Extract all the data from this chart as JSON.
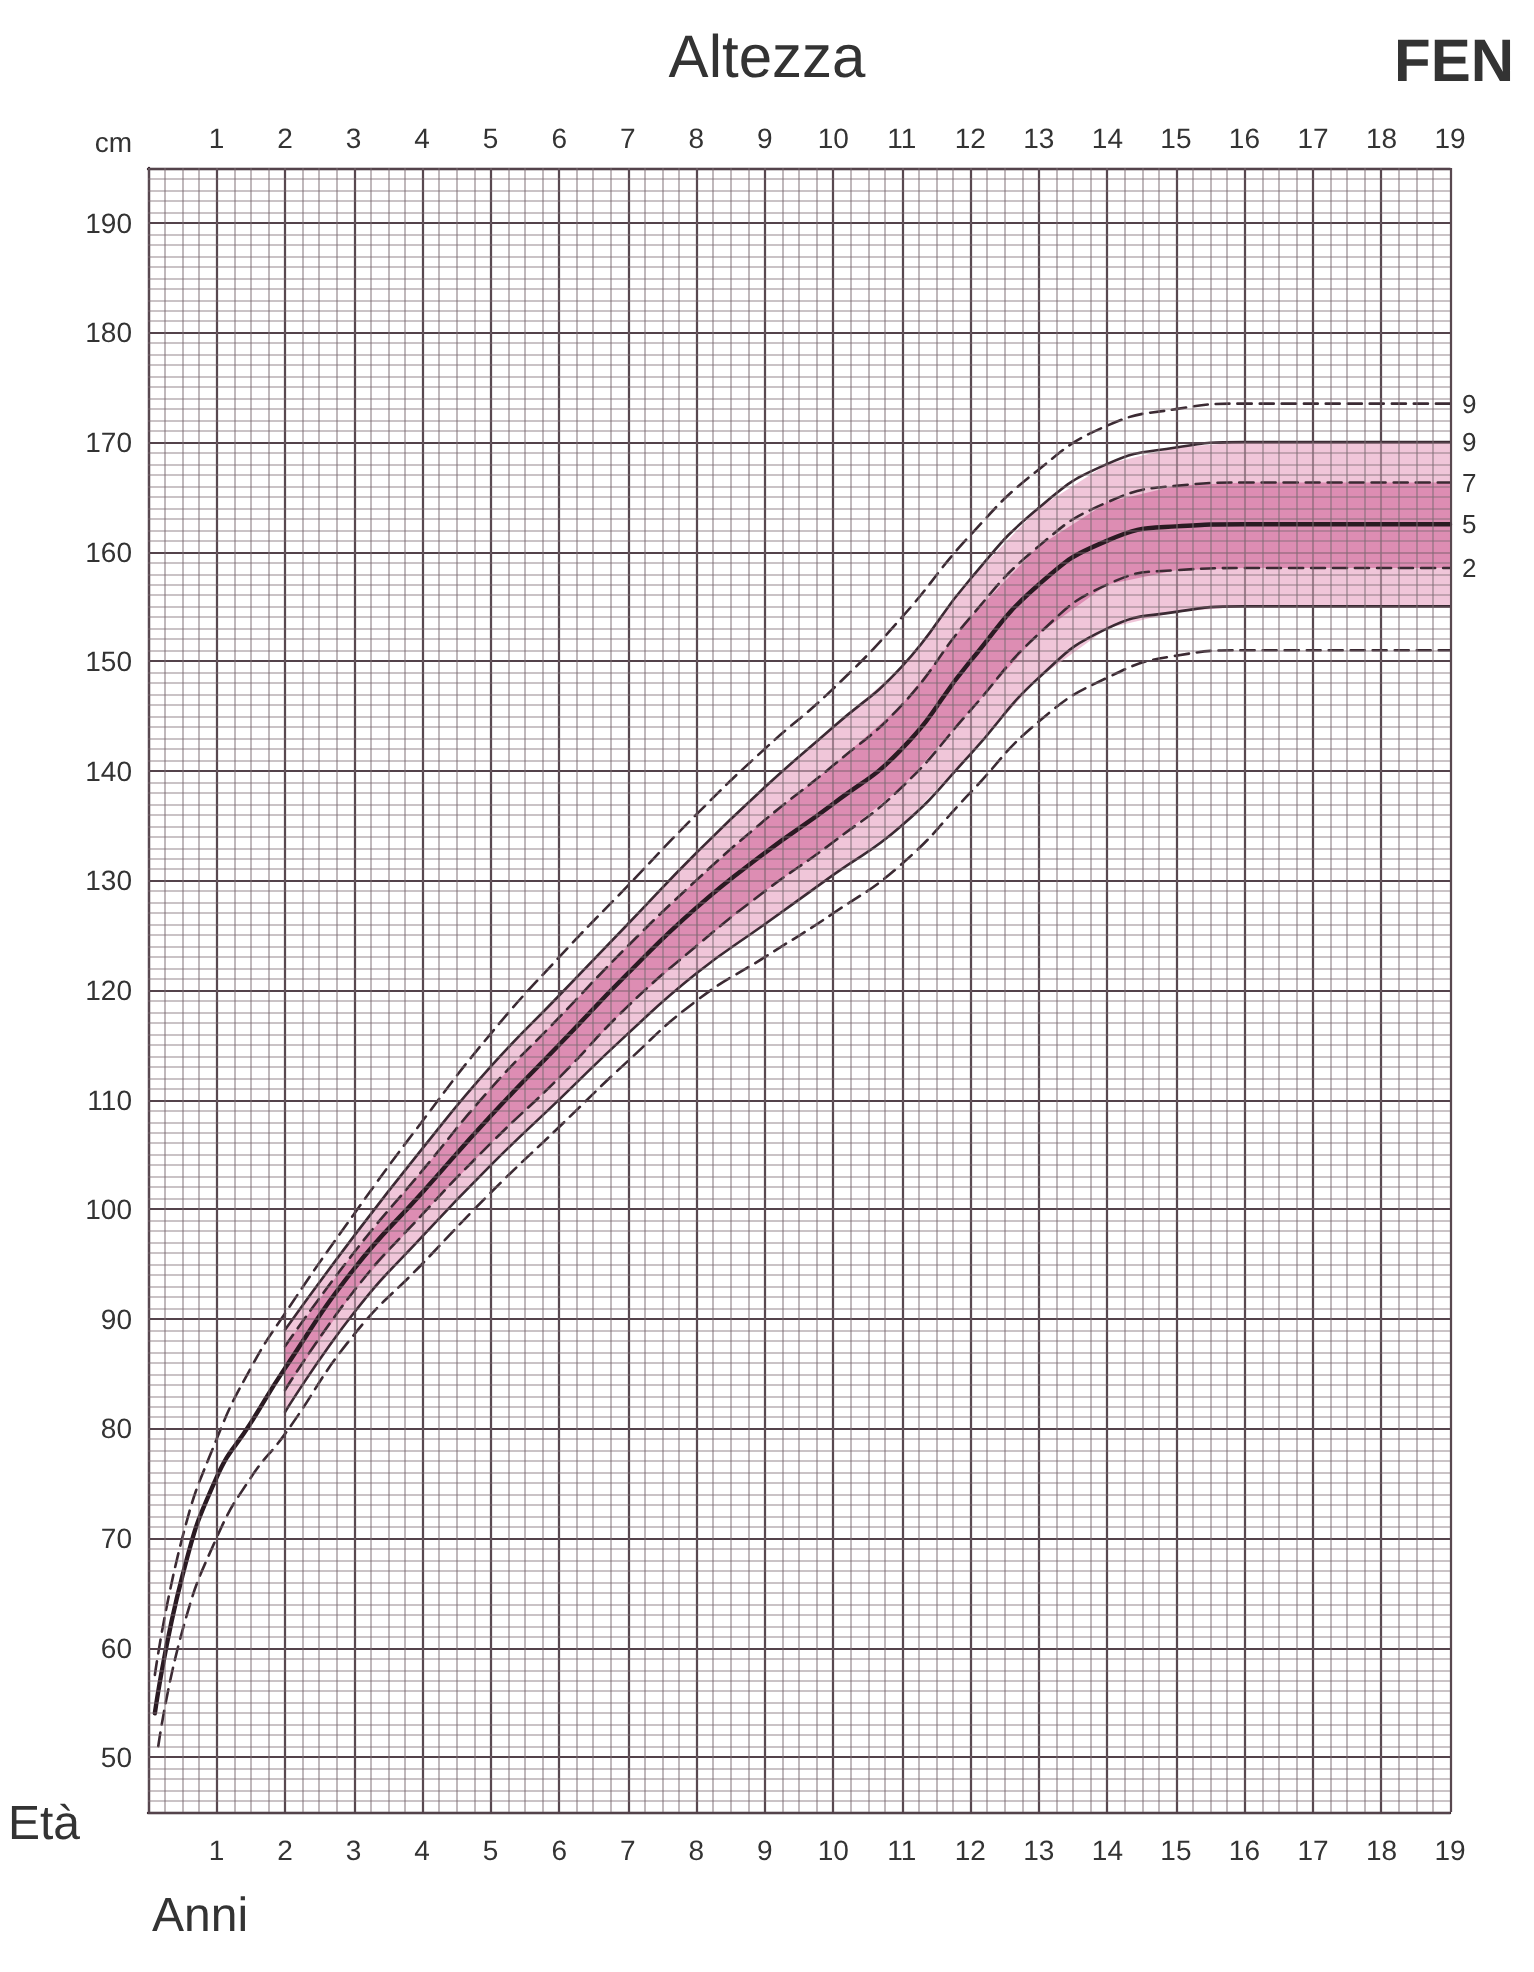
{
  "chart_data": {
    "type": "line",
    "title": "Altezza",
    "xlabel": "Età",
    "ylabel": "cm",
    "annotations": [
      "Anni",
      "FEN"
    ],
    "xlim": [
      0,
      19
    ],
    "xticks": [
      1,
      2,
      3,
      4,
      5,
      6,
      7,
      8,
      9,
      10,
      11,
      12,
      13,
      14,
      15,
      16,
      17,
      18,
      19
    ],
    "x2lim": [
      0,
      19
    ],
    "x2ticks": [
      1,
      2,
      3,
      4,
      5,
      6,
      7,
      8,
      9,
      10,
      11,
      12,
      13,
      14,
      15,
      16,
      17,
      18,
      19
    ],
    "ylim": [
      45,
      195
    ],
    "yticks": [
      50,
      60,
      70,
      80,
      90,
      100,
      110,
      120,
      130,
      140,
      150,
      160,
      170,
      180,
      190
    ],
    "grid": true,
    "marker": "none",
    "legend": false,
    "series": [
      {
        "name": "9",
        "color": "#3b2a33",
        "line_style": "dashed",
        "x": [
          0.1,
          0.5,
          1,
          1.5,
          2,
          3,
          4,
          5,
          6,
          7,
          8,
          9,
          10,
          11,
          12,
          13,
          14,
          15,
          16,
          19
        ],
        "values": [
          57.5,
          70,
          79,
          85.5,
          90.5,
          99.5,
          108,
          116,
          123,
          129.5,
          136,
          142,
          147.5,
          154,
          161.5,
          167.5,
          171.5,
          173,
          173.5,
          173.5
        ]
      },
      {
        "name": "9",
        "color": "#3b2a33",
        "line_style": "solid",
        "x": [
          2,
          3,
          4,
          5,
          6,
          7,
          8,
          9,
          10,
          11,
          12,
          13,
          14,
          15,
          16,
          19
        ],
        "values": [
          89,
          97.5,
          105.5,
          113,
          119.5,
          126,
          132.5,
          138.5,
          144,
          149.5,
          157.5,
          164,
          168,
          169.5,
          170,
          170
        ],
        "lower": [
          81.5,
          90.5,
          97.5,
          104,
          110,
          116,
          121.5,
          126,
          130.5,
          135,
          141.5,
          148.5,
          153,
          154.5,
          155,
          155
        ],
        "upper": [
          89,
          97.5,
          105.5,
          113,
          119.5,
          126,
          132.5,
          138.5,
          144,
          149.5,
          157.5,
          164,
          168,
          169.5,
          170,
          170
        ]
      },
      {
        "name": "7",
        "color": "#3b2a33",
        "line_style": "dashed",
        "x": [
          2,
          3,
          4,
          5,
          6,
          7,
          8,
          9,
          10,
          11,
          12,
          13,
          14,
          15,
          16,
          19
        ],
        "values": [
          87.5,
          96,
          103.5,
          111,
          117.5,
          124,
          130,
          135.5,
          140.5,
          146,
          154,
          160.5,
          164.5,
          166,
          166.3,
          166.3
        ]
      },
      {
        "name": "5",
        "color": "#2a1a22",
        "line_style": "solid",
        "x": [
          0.1,
          0.5,
          1,
          1.5,
          2,
          3,
          4,
          5,
          6,
          7,
          8,
          9,
          10,
          11,
          12,
          13,
          14,
          15,
          16,
          19
        ],
        "values": [
          54,
          66.5,
          75.5,
          80.5,
          85.5,
          94.5,
          101.5,
          108.5,
          115,
          121.5,
          127.5,
          132.5,
          137,
          142,
          150,
          157,
          161,
          162.3,
          162.5,
          162.5
        ],
        "lower": [
          null,
          null,
          null,
          null,
          83.5,
          92.5,
          99.5,
          106,
          112,
          118.5,
          124,
          129,
          133.5,
          138.5,
          145.5,
          152.5,
          157,
          158.3,
          158.5,
          158.5
        ],
        "upper": [
          null,
          null,
          null,
          null,
          87.5,
          96,
          103.5,
          111,
          117.5,
          124,
          130,
          135.5,
          140.5,
          146,
          154,
          160.5,
          164.5,
          166,
          166.3,
          166.3
        ]
      },
      {
        "name": "2",
        "color": "#3b2a33",
        "line_style": "dashed",
        "x": [
          2,
          3,
          4,
          5,
          6,
          7,
          8,
          9,
          10,
          11,
          12,
          13,
          14,
          15,
          16,
          19
        ],
        "values": [
          83.5,
          92.5,
          99.5,
          106,
          112,
          118.5,
          124,
          129,
          133.5,
          138.5,
          145.5,
          152.5,
          157,
          158.3,
          158.5,
          158.5
        ]
      },
      {
        "color": "#3b2a33",
        "line_style": "solid",
        "x": [
          2,
          3,
          4,
          5,
          6,
          7,
          8,
          9,
          10,
          11,
          12,
          13,
          14,
          15,
          16,
          19
        ],
        "values": [
          81.5,
          90.5,
          97.5,
          104,
          110,
          116,
          121.5,
          126,
          130.5,
          135,
          141.5,
          148.5,
          153,
          154.5,
          155,
          155
        ]
      },
      {
        "color": "#3b2a33",
        "line_style": "dashed",
        "x": [
          0.15,
          0.5,
          1,
          1.5,
          2,
          3,
          4,
          5,
          6,
          7,
          8,
          9,
          10,
          11,
          12,
          13,
          14,
          15,
          16,
          19
        ],
        "values": [
          51,
          61.5,
          70,
          75.5,
          79.5,
          88.5,
          95,
          101.5,
          107.5,
          113.5,
          119,
          123,
          127,
          131.5,
          138,
          144.5,
          148.5,
          150.5,
          151,
          151
        ]
      }
    ]
  }
}
